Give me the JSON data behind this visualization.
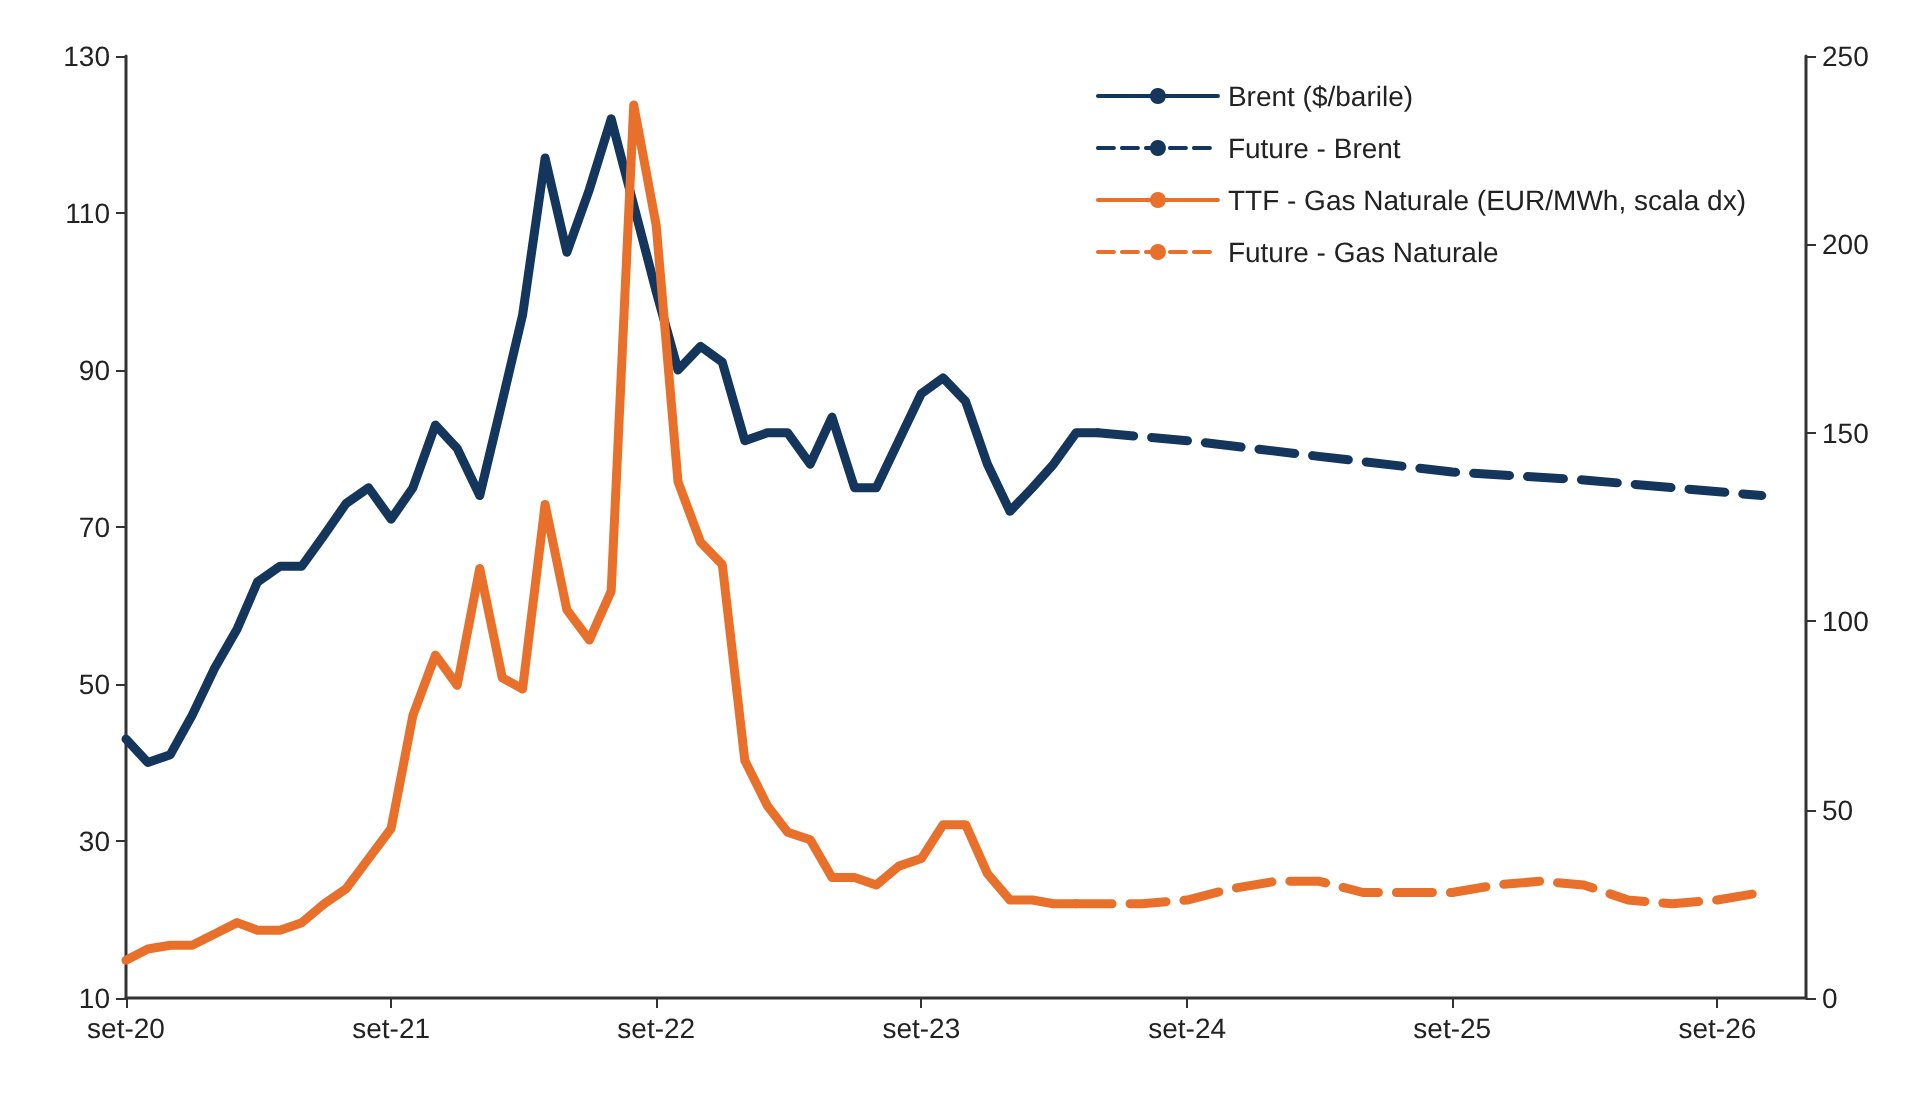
{
  "chart_data": {
    "type": "line",
    "marker": "none",
    "legend": "top right",
    "grid": false,
    "xlim": [
      "2020-09",
      "2027-01"
    ],
    "xticks": [
      {
        "value": "2020-09",
        "label": "set-20"
      },
      {
        "value": "2021-09",
        "label": "set-21"
      },
      {
        "value": "2022-09",
        "label": "set-22"
      },
      {
        "value": "2023-09",
        "label": "set-23"
      },
      {
        "value": "2024-09",
        "label": "set-24"
      },
      {
        "value": "2025-09",
        "label": "set-25"
      },
      {
        "value": "2026-09",
        "label": "set-26"
      }
    ],
    "ylim": [
      10,
      130
    ],
    "yticks": [
      10,
      30,
      50,
      70,
      90,
      110,
      130
    ],
    "y2lim": [
      0,
      250
    ],
    "y2ticks": [
      0,
      50,
      100,
      150,
      200,
      250
    ],
    "series": [
      {
        "name": "Brent ($/barile)",
        "color": "#14365d",
        "line_style": "solid",
        "x": [
          "2020-09",
          "2020-10",
          "2020-11",
          "2020-12",
          "2021-01",
          "2021-02",
          "2021-03",
          "2021-04",
          "2021-05",
          "2021-06",
          "2021-07",
          "2021-08",
          "2021-09",
          "2021-10",
          "2021-11",
          "2021-12",
          "2022-01",
          "2022-02",
          "2022-03",
          "2022-04",
          "2022-05",
          "2022-06",
          "2022-07",
          "2022-08",
          "2022-09",
          "2022-10",
          "2022-11",
          "2022-12",
          "2023-01",
          "2023-02",
          "2023-03",
          "2023-04",
          "2023-05",
          "2023-06",
          "2023-07",
          "2023-08",
          "2023-09",
          "2023-10",
          "2023-11",
          "2023-12",
          "2024-01",
          "2024-02",
          "2024-03",
          "2024-04",
          "2024-05"
        ],
        "values": [
          43,
          40,
          41,
          46,
          52,
          57,
          63,
          65,
          65,
          69,
          73,
          75,
          71,
          75,
          83,
          80,
          74,
          86,
          97,
          117,
          105,
          113,
          122,
          111,
          100,
          90,
          93,
          91,
          81,
          82,
          82,
          78,
          84,
          75,
          75,
          81,
          87,
          89,
          86,
          78,
          72,
          75,
          78,
          82,
          82
        ]
      },
      {
        "name": "Future - Brent",
        "color": "#14365d",
        "line_style": "dashed",
        "x": [
          "2024-05",
          "2024-09",
          "2025-03",
          "2025-09",
          "2026-03",
          "2026-11"
        ],
        "values": [
          82,
          81,
          79,
          77,
          76,
          74
        ]
      },
      {
        "name": "TTF - Gas Naturale (EUR/MWh, scala dx)",
        "color": "#e8702a",
        "line_style": "solid",
        "axis": "y2",
        "x": [
          "2020-09",
          "2020-10",
          "2020-11",
          "2020-12",
          "2021-01",
          "2021-02",
          "2021-03",
          "2021-04",
          "2021-05",
          "2021-06",
          "2021-07",
          "2021-08",
          "2021-09",
          "2021-10",
          "2021-11",
          "2021-12",
          "2022-01",
          "2022-02",
          "2022-03",
          "2022-04",
          "2022-05",
          "2022-06",
          "2022-07",
          "2022-08",
          "2022-09",
          "2022-10",
          "2022-11",
          "2022-12",
          "2023-01",
          "2023-02",
          "2023-03",
          "2023-04",
          "2023-05",
          "2023-06",
          "2023-07",
          "2023-08",
          "2023-09",
          "2023-10",
          "2023-11",
          "2023-12",
          "2024-01",
          "2024-02",
          "2024-03",
          "2024-04"
        ],
        "values": [
          10,
          13,
          14,
          14,
          17,
          20,
          18,
          18,
          20,
          25,
          29,
          37,
          45,
          75,
          91,
          83,
          114,
          85,
          82,
          131,
          103,
          95,
          108,
          237,
          205,
          137,
          121,
          115,
          63,
          51,
          44,
          42,
          32,
          32,
          30,
          35,
          37,
          46,
          46,
          33,
          26,
          26,
          25,
          25
        ]
      },
      {
        "name": "Future - Gas Naturale",
        "color": "#e8702a",
        "line_style": "dashed",
        "axis": "y2",
        "x": [
          "2024-04",
          "2024-07",
          "2024-09",
          "2024-11",
          "2025-01",
          "2025-03",
          "2025-05",
          "2025-07",
          "2025-09",
          "2025-11",
          "2026-01",
          "2026-03",
          "2026-05",
          "2026-07",
          "2026-09",
          "2026-11"
        ],
        "values": [
          25,
          25,
          26,
          29,
          31,
          31,
          28,
          28,
          28,
          30,
          31,
          30,
          26,
          25,
          26,
          28
        ]
      }
    ]
  }
}
